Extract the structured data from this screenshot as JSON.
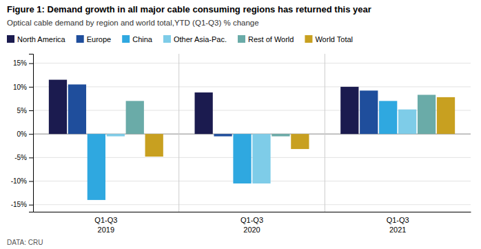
{
  "chart_data": {
    "type": "bar",
    "title": "Figure 1: Demand growth in all major cable consuming regions has returned this year",
    "subtitle": "Optical cable demand by region and world total,YTD (Q1-Q3) % change",
    "source": "DATA: CRU",
    "categories": [
      "2019",
      "2020",
      "2021"
    ],
    "category_sublabels": [
      "Q1-Q3",
      "Q1-Q3",
      "Q1-Q3"
    ],
    "series": [
      {
        "name": "North America",
        "color": "#1b1b4f",
        "values": [
          11.5,
          8.8,
          10.0
        ]
      },
      {
        "name": "Europe",
        "color": "#1f4e9c",
        "values": [
          10.5,
          -0.5,
          9.2
        ]
      },
      {
        "name": "China",
        "color": "#2fa8e0",
        "values": [
          -14.0,
          -10.5,
          7.0
        ]
      },
      {
        "name": "Other Asia-Pac.",
        "color": "#7ecce8",
        "values": [
          -0.5,
          -10.5,
          5.2
        ]
      },
      {
        "name": "Rest of World",
        "color": "#6aaba8",
        "values": [
          7.0,
          -0.5,
          8.3
        ]
      },
      {
        "name": "World Total",
        "color": "#c8a020",
        "values": [
          -4.8,
          -3.2,
          7.8
        ]
      }
    ],
    "ylim": [
      -16.5,
      17
    ],
    "yticks": [
      {
        "value": -15,
        "label": "-15%"
      },
      {
        "value": -10,
        "label": "-10%"
      },
      {
        "value": -5,
        "label": "-5%"
      },
      {
        "value": 0,
        "label": "0%"
      },
      {
        "value": 5,
        "label": "5%"
      },
      {
        "value": 10,
        "label": "10%"
      },
      {
        "value": 15,
        "label": "15%"
      }
    ],
    "grid": true,
    "legend": "upper left"
  }
}
